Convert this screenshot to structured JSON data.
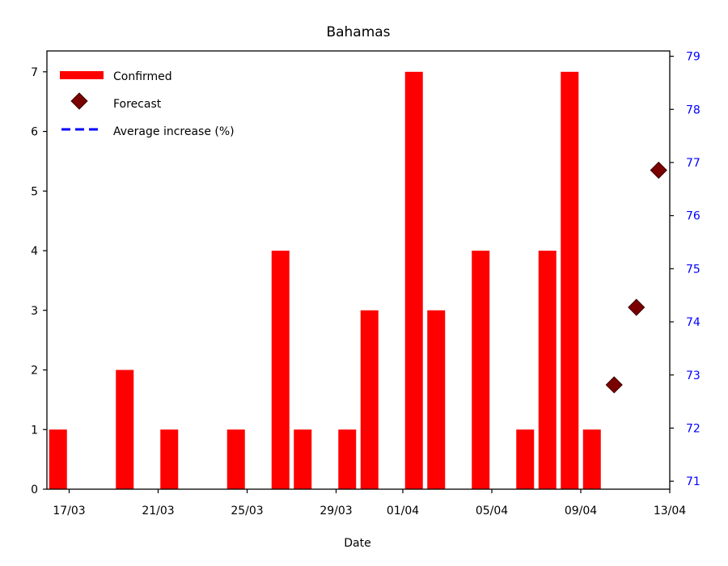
{
  "chart_data": {
    "type": "bar",
    "title": "Bahamas",
    "xlabel": "Date",
    "ylabel": "",
    "ylim": [
      0,
      7.35
    ],
    "y2lim": [
      70.85,
      79.1
    ],
    "xlim": [
      -0.5,
      27.5
    ],
    "x_ticks": [
      {
        "x": 0.5,
        "label": "17/03"
      },
      {
        "x": 4.5,
        "label": "21/03"
      },
      {
        "x": 8.5,
        "label": "25/03"
      },
      {
        "x": 12.5,
        "label": "29/03"
      },
      {
        "x": 15.5,
        "label": "01/04"
      },
      {
        "x": 19.5,
        "label": "05/04"
      },
      {
        "x": 23.5,
        "label": "09/04"
      },
      {
        "x": 27.5,
        "label": "13/04"
      }
    ],
    "y_ticks": [
      0,
      1,
      2,
      3,
      4,
      5,
      6,
      7
    ],
    "y2_ticks": [
      71,
      72,
      73,
      74,
      75,
      76,
      77,
      78,
      79
    ],
    "confirmed": {
      "name": "Confirmed",
      "color": "#ff0000",
      "dates": [
        "16/03",
        "17/03",
        "18/03",
        "19/03",
        "20/03",
        "21/03",
        "22/03",
        "23/03",
        "24/03",
        "25/03",
        "26/03",
        "27/03",
        "28/03",
        "29/03",
        "30/03",
        "31/03",
        "01/04",
        "02/04",
        "03/04",
        "04/04",
        "05/04",
        "06/04",
        "07/04",
        "08/04",
        "09/04"
      ],
      "values": [
        1,
        0,
        0,
        2,
        0,
        1,
        0,
        0,
        1,
        0,
        4,
        1,
        0,
        1,
        3,
        0,
        7,
        3,
        0,
        4,
        0,
        1,
        4,
        7,
        1
      ]
    },
    "forecast": {
      "name": "Forecast",
      "color": "#7a0000",
      "dates": [
        "10/04",
        "11/04",
        "12/04"
      ],
      "values": [
        1.75,
        3.05,
        5.35
      ]
    },
    "average_increase": {
      "name": "Average increase (%)",
      "color": "#0000ff",
      "style": "dashed",
      "values": []
    },
    "legend": "top-left",
    "grid": false
  }
}
